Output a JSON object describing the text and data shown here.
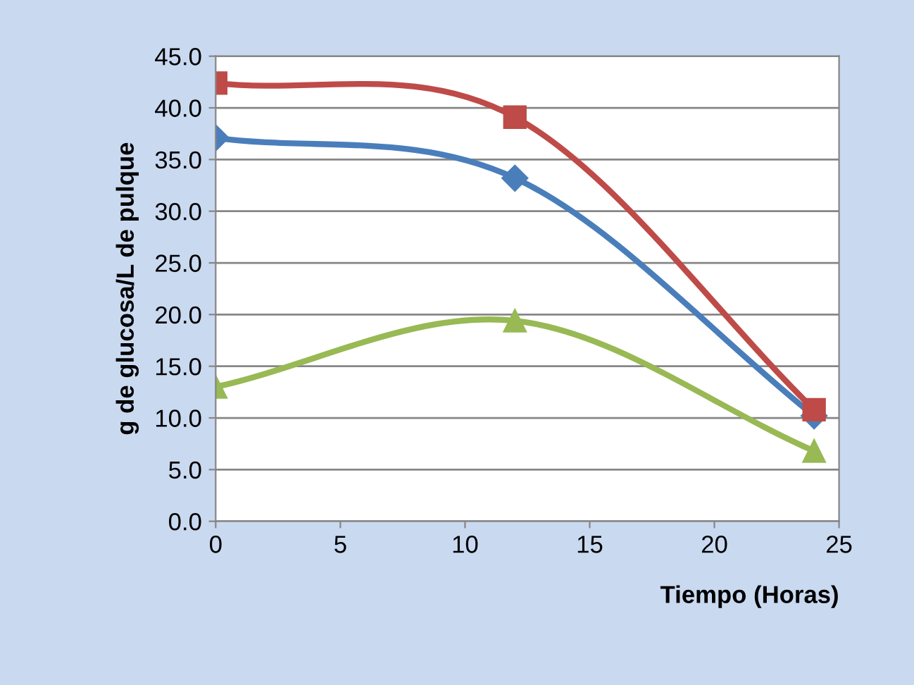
{
  "chart_data": {
    "type": "line",
    "xlabel": "Tiempo (Horas)",
    "ylabel": "g de glucosa/L de pulque",
    "xlim": [
      0,
      25
    ],
    "xticks": [
      0,
      5,
      10,
      15,
      20,
      25
    ],
    "ylim": [
      0,
      45
    ],
    "yticks": [
      {
        "value": 0,
        "label": "0.0"
      },
      {
        "value": 5,
        "label": "5.0"
      },
      {
        "value": 10,
        "label": "10.0"
      },
      {
        "value": 15,
        "label": "15.0"
      },
      {
        "value": 20,
        "label": "20.0"
      },
      {
        "value": 25,
        "label": "25.0"
      },
      {
        "value": 30,
        "label": "30.0"
      },
      {
        "value": 35,
        "label": "35.0"
      },
      {
        "value": 40,
        "label": "40.0"
      },
      {
        "value": 45,
        "label": "45.0"
      }
    ],
    "grid": "y",
    "x": [
      0,
      12,
      24
    ],
    "series": [
      {
        "color": "#4a7ebb",
        "marker": "diamond",
        "values": [
          37.1,
          33.2,
          10.2
        ]
      },
      {
        "color": "#be4b48",
        "marker": "square",
        "values": [
          42.4,
          39.1,
          10.8
        ]
      },
      {
        "color": "#98b954",
        "marker": "triangle",
        "values": [
          13.0,
          19.4,
          6.8
        ]
      }
    ]
  }
}
